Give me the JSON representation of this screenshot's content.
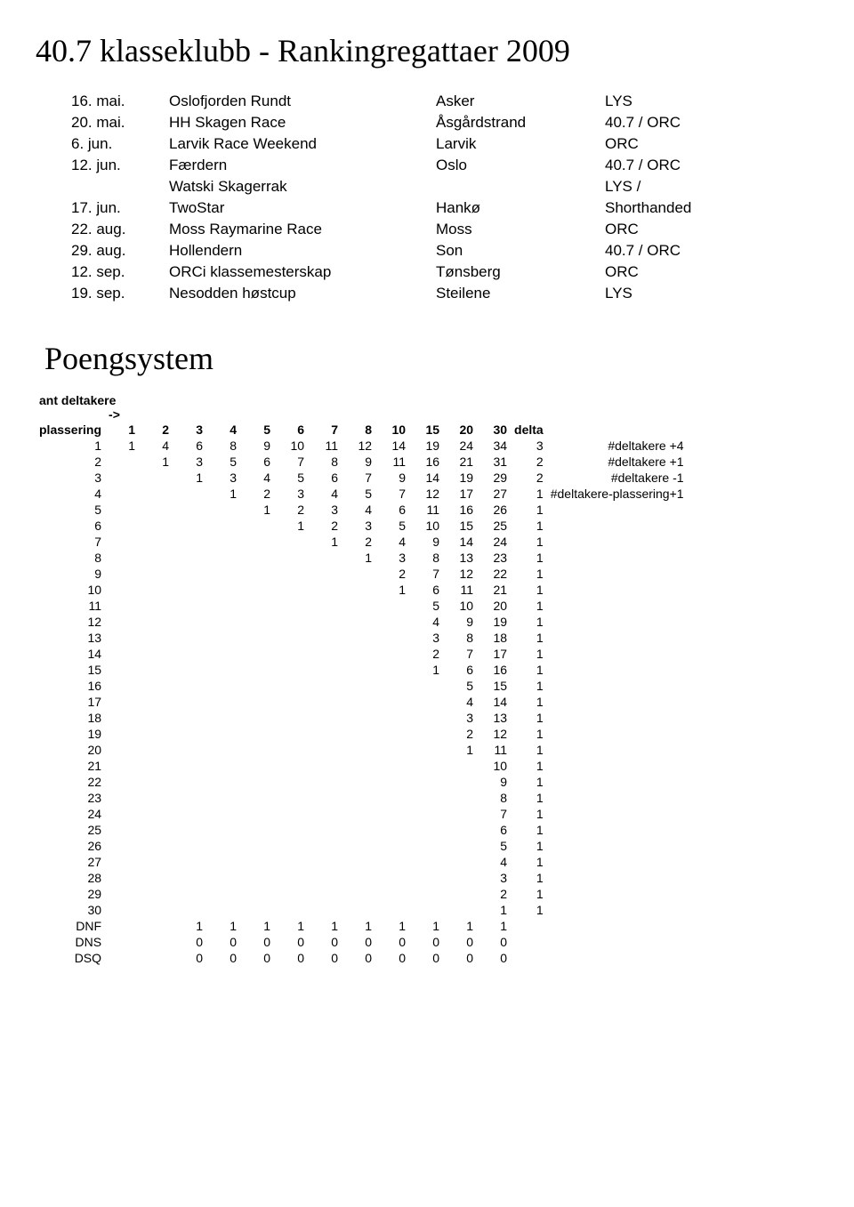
{
  "title": "40.7 klasseklubb - Rankingregattaer 2009",
  "regattas": [
    {
      "date": "16. mai.",
      "event": "Oslofjorden Rundt",
      "location": "Asker",
      "class": "LYS"
    },
    {
      "date": "20. mai.",
      "event": "HH Skagen Race",
      "location": "Åsgårdstrand",
      "class": "40.7 / ORC"
    },
    {
      "date": "6. jun.",
      "event": "Larvik Race Weekend",
      "location": "Larvik",
      "class": "ORC"
    },
    {
      "date": "12. jun.",
      "event": "Færdern",
      "location": "Oslo",
      "class": "40.7 / ORC"
    },
    {
      "date": "",
      "event": "Watski Skagerrak",
      "location": "",
      "class": "LYS /"
    },
    {
      "date": "17. jun.",
      "event": "TwoStar",
      "location": "Hankø",
      "class": "Shorthanded"
    },
    {
      "date": "22. aug.",
      "event": "Moss Raymarine Race",
      "location": "Moss",
      "class": "ORC"
    },
    {
      "date": "29. aug.",
      "event": "Hollendern",
      "location": "Son",
      "class": "40.7 / ORC"
    },
    {
      "date": "12. sep.",
      "event": "ORCi klassemesterskap",
      "location": "Tønsberg",
      "class": "ORC"
    },
    {
      "date": "19. sep.",
      "event": "Nesodden høstcup",
      "location": "Steilene",
      "class": "LYS"
    }
  ],
  "poeng_title": "Poengsystem",
  "pre_header_1": "ant deltakere",
  "pre_header_2": "->",
  "col_labels": [
    "plassering",
    "1",
    "2",
    "3",
    "4",
    "5",
    "6",
    "7",
    "8",
    "10",
    "15",
    "20",
    "30",
    "delta"
  ],
  "poeng_rows": [
    {
      "label": "1",
      "v": [
        "1",
        "4",
        "6",
        "8",
        "9",
        "10",
        "11",
        "12",
        "14",
        "19",
        "24",
        "34",
        "3"
      ],
      "note": "#deltakere +4"
    },
    {
      "label": "2",
      "v": [
        "",
        "1",
        "3",
        "5",
        "6",
        "7",
        "8",
        "9",
        "11",
        "16",
        "21",
        "31",
        "2"
      ],
      "note": "#deltakere +1"
    },
    {
      "label": "3",
      "v": [
        "",
        "",
        "1",
        "3",
        "4",
        "5",
        "6",
        "7",
        "9",
        "14",
        "19",
        "29",
        "2"
      ],
      "note": "#deltakere -1"
    },
    {
      "label": "4",
      "v": [
        "",
        "",
        "",
        "1",
        "2",
        "3",
        "4",
        "5",
        "7",
        "12",
        "17",
        "27",
        "1"
      ],
      "note": "#deltakere-plassering+1"
    },
    {
      "label": "5",
      "v": [
        "",
        "",
        "",
        "",
        "1",
        "2",
        "3",
        "4",
        "6",
        "11",
        "16",
        "26",
        "1"
      ],
      "note": ""
    },
    {
      "label": "6",
      "v": [
        "",
        "",
        "",
        "",
        "",
        "1",
        "2",
        "3",
        "5",
        "10",
        "15",
        "25",
        "1"
      ],
      "note": ""
    },
    {
      "label": "7",
      "v": [
        "",
        "",
        "",
        "",
        "",
        "",
        "1",
        "2",
        "4",
        "9",
        "14",
        "24",
        "1"
      ],
      "note": ""
    },
    {
      "label": "8",
      "v": [
        "",
        "",
        "",
        "",
        "",
        "",
        "",
        "1",
        "3",
        "8",
        "13",
        "23",
        "1"
      ],
      "note": ""
    },
    {
      "label": "9",
      "v": [
        "",
        "",
        "",
        "",
        "",
        "",
        "",
        "",
        "2",
        "7",
        "12",
        "22",
        "1"
      ],
      "note": ""
    },
    {
      "label": "10",
      "v": [
        "",
        "",
        "",
        "",
        "",
        "",
        "",
        "",
        "1",
        "6",
        "11",
        "21",
        "1"
      ],
      "note": ""
    },
    {
      "label": "11",
      "v": [
        "",
        "",
        "",
        "",
        "",
        "",
        "",
        "",
        "",
        "5",
        "10",
        "20",
        "1"
      ],
      "note": ""
    },
    {
      "label": "12",
      "v": [
        "",
        "",
        "",
        "",
        "",
        "",
        "",
        "",
        "",
        "4",
        "9",
        "19",
        "1"
      ],
      "note": ""
    },
    {
      "label": "13",
      "v": [
        "",
        "",
        "",
        "",
        "",
        "",
        "",
        "",
        "",
        "3",
        "8",
        "18",
        "1"
      ],
      "note": ""
    },
    {
      "label": "14",
      "v": [
        "",
        "",
        "",
        "",
        "",
        "",
        "",
        "",
        "",
        "2",
        "7",
        "17",
        "1"
      ],
      "note": ""
    },
    {
      "label": "15",
      "v": [
        "",
        "",
        "",
        "",
        "",
        "",
        "",
        "",
        "",
        "1",
        "6",
        "16",
        "1"
      ],
      "note": ""
    },
    {
      "label": "16",
      "v": [
        "",
        "",
        "",
        "",
        "",
        "",
        "",
        "",
        "",
        "",
        "5",
        "15",
        "1"
      ],
      "note": ""
    },
    {
      "label": "17",
      "v": [
        "",
        "",
        "",
        "",
        "",
        "",
        "",
        "",
        "",
        "",
        "4",
        "14",
        "1"
      ],
      "note": ""
    },
    {
      "label": "18",
      "v": [
        "",
        "",
        "",
        "",
        "",
        "",
        "",
        "",
        "",
        "",
        "3",
        "13",
        "1"
      ],
      "note": ""
    },
    {
      "label": "19",
      "v": [
        "",
        "",
        "",
        "",
        "",
        "",
        "",
        "",
        "",
        "",
        "2",
        "12",
        "1"
      ],
      "note": ""
    },
    {
      "label": "20",
      "v": [
        "",
        "",
        "",
        "",
        "",
        "",
        "",
        "",
        "",
        "",
        "1",
        "11",
        "1"
      ],
      "note": ""
    },
    {
      "label": "21",
      "v": [
        "",
        "",
        "",
        "",
        "",
        "",
        "",
        "",
        "",
        "",
        "",
        "10",
        "1"
      ],
      "note": ""
    },
    {
      "label": "22",
      "v": [
        "",
        "",
        "",
        "",
        "",
        "",
        "",
        "",
        "",
        "",
        "",
        "9",
        "1"
      ],
      "note": ""
    },
    {
      "label": "23",
      "v": [
        "",
        "",
        "",
        "",
        "",
        "",
        "",
        "",
        "",
        "",
        "",
        "8",
        "1"
      ],
      "note": ""
    },
    {
      "label": "24",
      "v": [
        "",
        "",
        "",
        "",
        "",
        "",
        "",
        "",
        "",
        "",
        "",
        "7",
        "1"
      ],
      "note": ""
    },
    {
      "label": "25",
      "v": [
        "",
        "",
        "",
        "",
        "",
        "",
        "",
        "",
        "",
        "",
        "",
        "6",
        "1"
      ],
      "note": ""
    },
    {
      "label": "26",
      "v": [
        "",
        "",
        "",
        "",
        "",
        "",
        "",
        "",
        "",
        "",
        "",
        "5",
        "1"
      ],
      "note": ""
    },
    {
      "label": "27",
      "v": [
        "",
        "",
        "",
        "",
        "",
        "",
        "",
        "",
        "",
        "",
        "",
        "4",
        "1"
      ],
      "note": ""
    },
    {
      "label": "28",
      "v": [
        "",
        "",
        "",
        "",
        "",
        "",
        "",
        "",
        "",
        "",
        "",
        "3",
        "1"
      ],
      "note": ""
    },
    {
      "label": "29",
      "v": [
        "",
        "",
        "",
        "",
        "",
        "",
        "",
        "",
        "",
        "",
        "",
        "2",
        "1"
      ],
      "note": ""
    },
    {
      "label": "30",
      "v": [
        "",
        "",
        "",
        "",
        "",
        "",
        "",
        "",
        "",
        "",
        "",
        "1",
        "1"
      ],
      "note": ""
    },
    {
      "label": "DNF",
      "v": [
        "",
        "",
        "1",
        "1",
        "1",
        "1",
        "1",
        "1",
        "1",
        "1",
        "1",
        "1",
        ""
      ],
      "note": ""
    },
    {
      "label": "DNS",
      "v": [
        "",
        "",
        "0",
        "0",
        "0",
        "0",
        "0",
        "0",
        "0",
        "0",
        "0",
        "0",
        ""
      ],
      "note": ""
    },
    {
      "label": "DSQ",
      "v": [
        "",
        "",
        "0",
        "0",
        "0",
        "0",
        "0",
        "0",
        "0",
        "0",
        "0",
        "0",
        ""
      ],
      "note": ""
    }
  ]
}
